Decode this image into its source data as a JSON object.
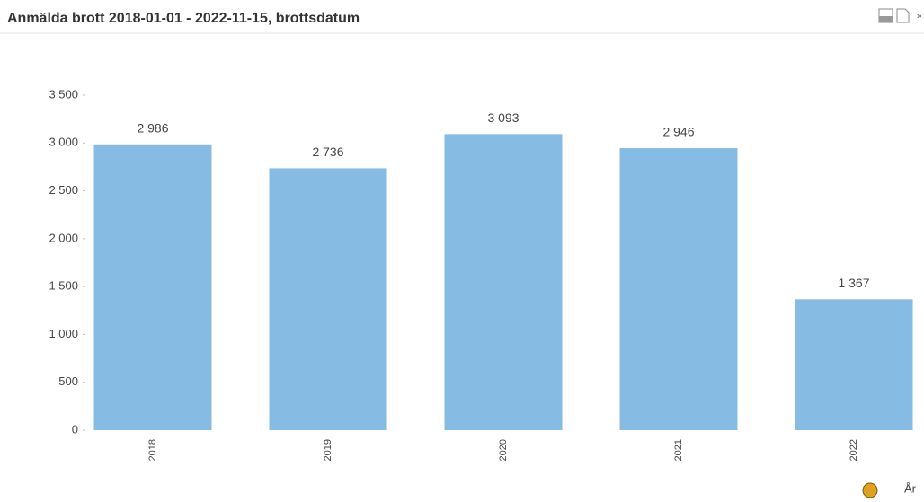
{
  "chart_data": {
    "type": "bar",
    "title": "Anmälda brott 2018-01-01 - 2022-11-15, brottsdatum",
    "x_label": "År",
    "categories": [
      "2018",
      "2019",
      "2020",
      "2021",
      "2022"
    ],
    "values": [
      2986,
      2736,
      3093,
      2946,
      1367
    ],
    "value_labels": [
      "2 986",
      "2 736",
      "3 093",
      "2 946",
      "1 367"
    ],
    "color": "#86bbe4",
    "ylim": [
      0,
      3500
    ],
    "yticks": [
      0,
      500,
      {
        "value": 1000,
        "label": "1 000"
      },
      {
        "value": 1500,
        "label": "1 500"
      },
      {
        "value": 2000,
        "label": "2 000"
      },
      {
        "value": 2500,
        "label": "2 500"
      },
      {
        "value": 3000,
        "label": "3 000"
      },
      {
        "value": 3500,
        "label": "3 500"
      }
    ],
    "grid": false
  }
}
